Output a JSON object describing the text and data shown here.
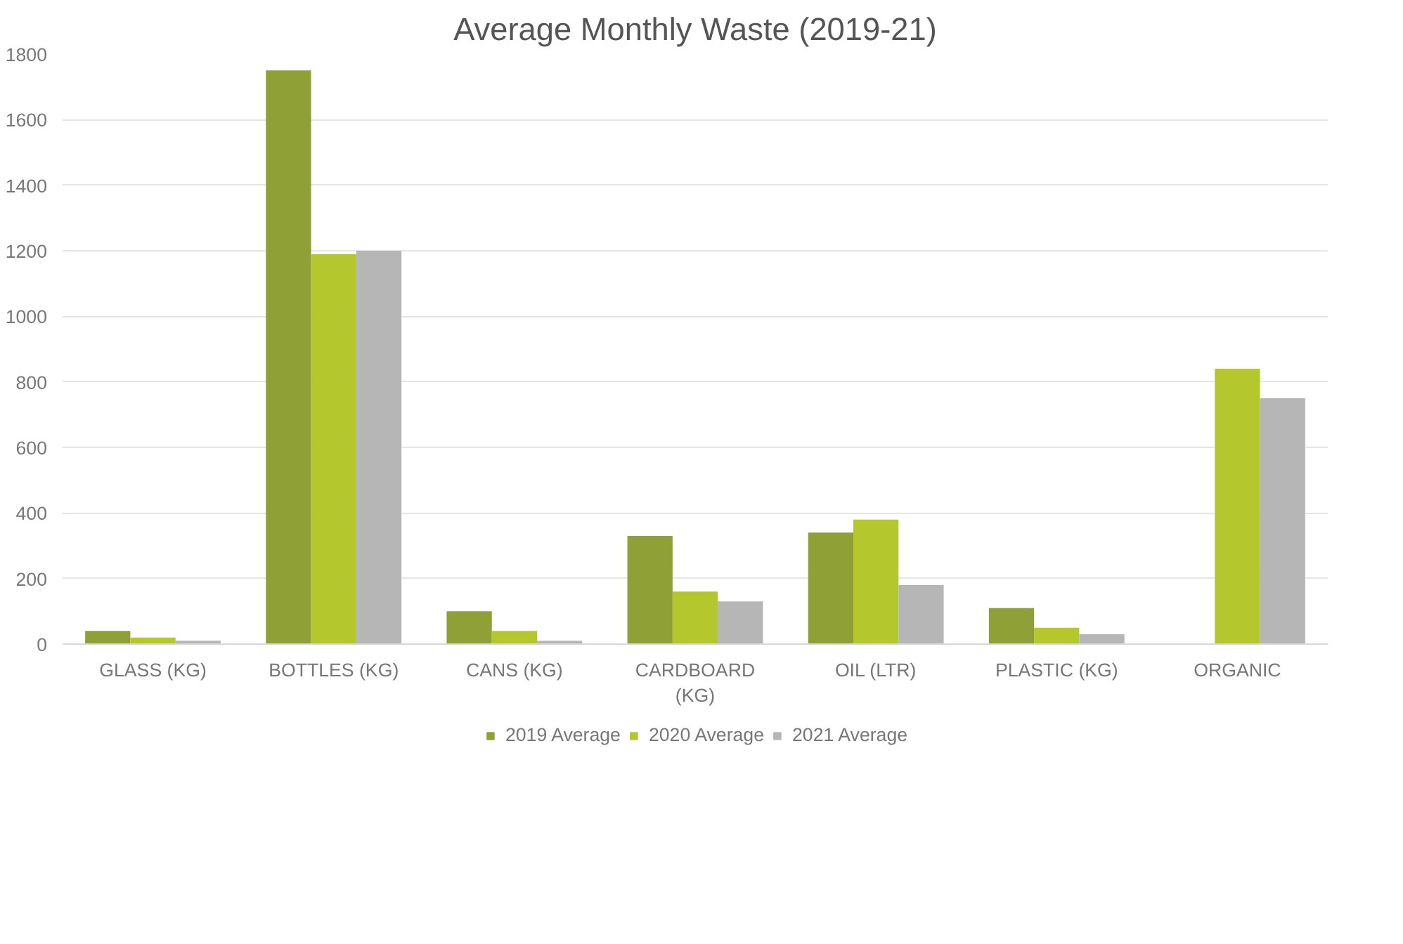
{
  "chart_data": {
    "type": "bar",
    "title": "Average Monthly Waste (2019-21)",
    "categories": [
      "GLASS (KG)",
      "BOTTLES (KG)",
      "CANS (KG)",
      "CARDBOARD (KG)",
      "OIL (LTR)",
      "PLASTIC (KG)",
      "ORGANIC"
    ],
    "series": [
      {
        "name": "2019 Average",
        "color": "#8fa136",
        "values": [
          40,
          1750,
          100,
          330,
          340,
          110,
          null
        ]
      },
      {
        "name": "2020 Average",
        "color": "#b4c82e",
        "values": [
          20,
          1190,
          40,
          160,
          380,
          50,
          840
        ]
      },
      {
        "name": "2021 Average",
        "color": "#b6b6b6",
        "values": [
          10,
          1200,
          10,
          130,
          180,
          30,
          750
        ]
      }
    ],
    "ylim": [
      0,
      1800
    ],
    "yticks": [
      0,
      200,
      400,
      600,
      800,
      1000,
      1200,
      1400,
      1600,
      1800
    ],
    "grid": "y",
    "legend": "bottom"
  }
}
